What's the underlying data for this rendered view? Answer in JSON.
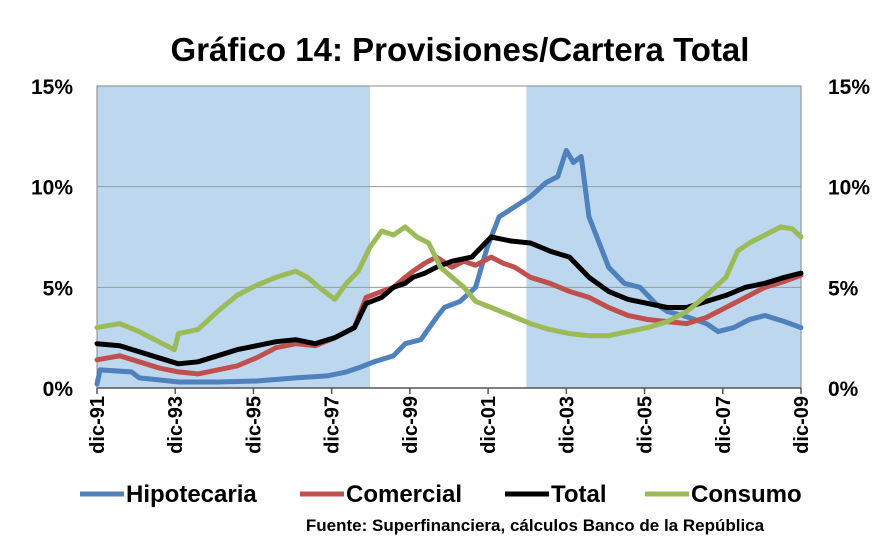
{
  "chart_data": {
    "type": "line",
    "title": "Gráfico 14: Provisiones/Cartera Total",
    "y_ticks": [
      "0%",
      "5%",
      "10%",
      "15%"
    ],
    "y_tick_values": [
      0,
      5,
      10,
      15
    ],
    "ylim": [
      0,
      15
    ],
    "xlim": [
      1991.92,
      2009.92
    ],
    "x_ticks": [
      "dic-91",
      "dic-93",
      "dic-95",
      "dic-97",
      "dic-99",
      "dic-01",
      "dic-03",
      "dic-05",
      "dic-07",
      "dic-09"
    ],
    "x_tick_values": [
      1991.92,
      1993.92,
      1995.92,
      1997.92,
      1999.92,
      2001.92,
      2003.92,
      2005.92,
      2007.92,
      2009.92
    ],
    "grid": true,
    "shaded_periods": [
      [
        1991.92,
        1998.9
      ],
      [
        2002.9,
        2009.92
      ]
    ],
    "shade_color": "#bdd7ee",
    "source": "Fuente: Superfinanciera, cálculos Banco de la República",
    "series": [
      {
        "name": "Hipotecaria",
        "color": "#4f81bd",
        "points": [
          [
            1991.92,
            0.2
          ],
          [
            1992.0,
            0.9
          ],
          [
            1992.8,
            0.8
          ],
          [
            1993.0,
            0.5
          ],
          [
            1993.5,
            0.4
          ],
          [
            1994.0,
            0.3
          ],
          [
            1995.0,
            0.3
          ],
          [
            1996.0,
            0.35
          ],
          [
            1997.0,
            0.5
          ],
          [
            1997.8,
            0.6
          ],
          [
            1998.3,
            0.8
          ],
          [
            1998.6,
            1.0
          ],
          [
            1999.0,
            1.3
          ],
          [
            1999.5,
            1.6
          ],
          [
            1999.8,
            2.2
          ],
          [
            2000.2,
            2.4
          ],
          [
            2000.6,
            3.5
          ],
          [
            2000.8,
            4.0
          ],
          [
            2001.2,
            4.3
          ],
          [
            2001.6,
            5.0
          ],
          [
            2001.9,
            7.0
          ],
          [
            2002.2,
            8.5
          ],
          [
            2002.6,
            9.0
          ],
          [
            2003.0,
            9.5
          ],
          [
            2003.4,
            10.2
          ],
          [
            2003.7,
            10.5
          ],
          [
            2003.92,
            11.8
          ],
          [
            2004.1,
            11.2
          ],
          [
            2004.3,
            11.5
          ],
          [
            2004.5,
            8.5
          ],
          [
            2004.8,
            7.0
          ],
          [
            2005.0,
            6.0
          ],
          [
            2005.4,
            5.2
          ],
          [
            2005.8,
            5.0
          ],
          [
            2006.2,
            4.2
          ],
          [
            2006.5,
            3.8
          ],
          [
            2006.9,
            3.6
          ],
          [
            2007.2,
            3.4
          ],
          [
            2007.5,
            3.2
          ],
          [
            2007.8,
            2.8
          ],
          [
            2008.2,
            3.0
          ],
          [
            2008.6,
            3.4
          ],
          [
            2009.0,
            3.6
          ],
          [
            2009.5,
            3.3
          ],
          [
            2009.92,
            3.0
          ]
        ]
      },
      {
        "name": "Comercial",
        "color": "#c0504d",
        "points": [
          [
            1991.92,
            1.4
          ],
          [
            1992.5,
            1.6
          ],
          [
            1993.0,
            1.3
          ],
          [
            1993.5,
            1.0
          ],
          [
            1994.0,
            0.8
          ],
          [
            1994.5,
            0.7
          ],
          [
            1995.0,
            0.9
          ],
          [
            1995.5,
            1.1
          ],
          [
            1996.0,
            1.5
          ],
          [
            1996.5,
            2.0
          ],
          [
            1997.0,
            2.2
          ],
          [
            1997.5,
            2.1
          ],
          [
            1998.0,
            2.5
          ],
          [
            1998.5,
            3.0
          ],
          [
            1998.8,
            4.5
          ],
          [
            1999.2,
            4.8
          ],
          [
            1999.5,
            5.0
          ],
          [
            1999.8,
            5.5
          ],
          [
            2000.0,
            5.8
          ],
          [
            2000.3,
            6.2
          ],
          [
            2000.6,
            6.5
          ],
          [
            2001.0,
            6.0
          ],
          [
            2001.3,
            6.3
          ],
          [
            2001.6,
            6.1
          ],
          [
            2002.0,
            6.5
          ],
          [
            2002.3,
            6.2
          ],
          [
            2002.6,
            6.0
          ],
          [
            2003.0,
            5.5
          ],
          [
            2003.5,
            5.2
          ],
          [
            2004.0,
            4.8
          ],
          [
            2004.5,
            4.5
          ],
          [
            2005.0,
            4.0
          ],
          [
            2005.5,
            3.6
          ],
          [
            2006.0,
            3.4
          ],
          [
            2006.5,
            3.3
          ],
          [
            2007.0,
            3.2
          ],
          [
            2007.5,
            3.5
          ],
          [
            2008.0,
            4.0
          ],
          [
            2008.5,
            4.5
          ],
          [
            2009.0,
            5.0
          ],
          [
            2009.5,
            5.3
          ],
          [
            2009.92,
            5.6
          ]
        ]
      },
      {
        "name": "Total",
        "color": "#000000",
        "points": [
          [
            1991.92,
            2.2
          ],
          [
            1992.5,
            2.1
          ],
          [
            1993.0,
            1.8
          ],
          [
            1993.5,
            1.5
          ],
          [
            1994.0,
            1.2
          ],
          [
            1994.5,
            1.3
          ],
          [
            1995.0,
            1.6
          ],
          [
            1995.5,
            1.9
          ],
          [
            1996.0,
            2.1
          ],
          [
            1996.5,
            2.3
          ],
          [
            1997.0,
            2.4
          ],
          [
            1997.5,
            2.2
          ],
          [
            1998.0,
            2.5
          ],
          [
            1998.5,
            3.0
          ],
          [
            1998.8,
            4.2
          ],
          [
            1999.2,
            4.5
          ],
          [
            1999.5,
            5.0
          ],
          [
            1999.8,
            5.2
          ],
          [
            2000.0,
            5.5
          ],
          [
            2000.3,
            5.7
          ],
          [
            2000.6,
            6.0
          ],
          [
            2001.0,
            6.3
          ],
          [
            2001.5,
            6.5
          ],
          [
            2002.0,
            7.5
          ],
          [
            2002.5,
            7.3
          ],
          [
            2003.0,
            7.2
          ],
          [
            2003.5,
            6.8
          ],
          [
            2004.0,
            6.5
          ],
          [
            2004.5,
            5.5
          ],
          [
            2005.0,
            4.8
          ],
          [
            2005.5,
            4.4
          ],
          [
            2006.0,
            4.2
          ],
          [
            2006.5,
            4.0
          ],
          [
            2007.0,
            4.0
          ],
          [
            2007.5,
            4.3
          ],
          [
            2008.0,
            4.6
          ],
          [
            2008.5,
            5.0
          ],
          [
            2009.0,
            5.2
          ],
          [
            2009.5,
            5.5
          ],
          [
            2009.92,
            5.7
          ]
        ]
      },
      {
        "name": "Consumo",
        "color": "#9bbb59",
        "points": [
          [
            1991.92,
            3.0
          ],
          [
            1992.5,
            3.2
          ],
          [
            1993.0,
            2.8
          ],
          [
            1993.5,
            2.3
          ],
          [
            1993.9,
            1.9
          ],
          [
            1994.0,
            2.7
          ],
          [
            1994.5,
            2.9
          ],
          [
            1995.0,
            3.8
          ],
          [
            1995.5,
            4.6
          ],
          [
            1996.0,
            5.1
          ],
          [
            1996.5,
            5.5
          ],
          [
            1997.0,
            5.8
          ],
          [
            1997.3,
            5.5
          ],
          [
            1997.6,
            5.0
          ],
          [
            1998.0,
            4.4
          ],
          [
            1998.3,
            5.2
          ],
          [
            1998.6,
            5.8
          ],
          [
            1998.9,
            7.0
          ],
          [
            1999.2,
            7.8
          ],
          [
            1999.5,
            7.6
          ],
          [
            1999.8,
            8.0
          ],
          [
            2000.1,
            7.5
          ],
          [
            2000.4,
            7.2
          ],
          [
            2000.7,
            6.0
          ],
          [
            2001.0,
            5.5
          ],
          [
            2001.3,
            5.0
          ],
          [
            2001.6,
            4.3
          ],
          [
            2002.0,
            4.0
          ],
          [
            2002.5,
            3.6
          ],
          [
            2003.0,
            3.2
          ],
          [
            2003.5,
            2.9
          ],
          [
            2004.0,
            2.7
          ],
          [
            2004.5,
            2.6
          ],
          [
            2005.0,
            2.6
          ],
          [
            2005.5,
            2.8
          ],
          [
            2006.0,
            3.0
          ],
          [
            2006.5,
            3.3
          ],
          [
            2007.0,
            3.8
          ],
          [
            2007.5,
            4.6
          ],
          [
            2008.0,
            5.5
          ],
          [
            2008.3,
            6.8
          ],
          [
            2008.6,
            7.2
          ],
          [
            2009.0,
            7.6
          ],
          [
            2009.4,
            8.0
          ],
          [
            2009.7,
            7.9
          ],
          [
            2009.92,
            7.5
          ]
        ]
      }
    ]
  }
}
